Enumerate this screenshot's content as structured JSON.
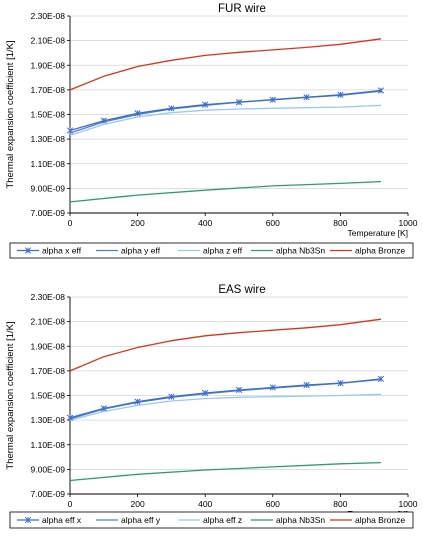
{
  "chart_data": [
    {
      "type": "line",
      "title": "FUR wire",
      "xlabel": "Temperature [K]",
      "ylabel": "Thermal expansion coefficient [1/K]",
      "xlim": [
        0,
        1000
      ],
      "ylim": [
        7e-09,
        2.3e-08
      ],
      "xticks": [
        0,
        200,
        400,
        600,
        800,
        1000
      ],
      "xtick_labels": [
        "0",
        "200",
        "400",
        "600",
        "800",
        "1000"
      ],
      "yticks": [
        7e-09,
        9e-09,
        1.1e-08,
        1.3e-08,
        1.5e-08,
        1.7e-08,
        1.9e-08,
        2.1e-08,
        2.3e-08
      ],
      "ytick_labels": [
        "7.00E-09",
        "9.00E-09",
        "1.10E-08",
        "1.30E-08",
        "1.50E-08",
        "1.70E-08",
        "1.90E-08",
        "2.10E-08",
        "2.30E-08"
      ],
      "grid": "horizontal",
      "legend_position": "bottom",
      "series": [
        {
          "name": "alpha x eff",
          "color": "#3d6fc9",
          "marker": "asterisk",
          "x": [
            0,
            100,
            200,
            300,
            400,
            500,
            600,
            700,
            800,
            920
          ],
          "y": [
            1.37e-08,
            1.45e-08,
            1.51e-08,
            1.55e-08,
            1.58e-08,
            1.6e-08,
            1.62e-08,
            1.64e-08,
            1.66e-08,
            1.695e-08
          ]
        },
        {
          "name": "alpha y eff",
          "color": "#4d7fd8",
          "marker": "none",
          "x": [
            0,
            100,
            200,
            300,
            400,
            500,
            600,
            700,
            800,
            920
          ],
          "y": [
            1.35e-08,
            1.44e-08,
            1.5e-08,
            1.545e-08,
            1.575e-08,
            1.6e-08,
            1.62e-08,
            1.64e-08,
            1.655e-08,
            1.69e-08
          ]
        },
        {
          "name": "alpha z eff",
          "color": "#9cc8ee",
          "marker": "none",
          "x": [
            0,
            100,
            200,
            300,
            400,
            500,
            600,
            700,
            800,
            920
          ],
          "y": [
            1.33e-08,
            1.42e-08,
            1.48e-08,
            1.515e-08,
            1.535e-08,
            1.545e-08,
            1.55e-08,
            1.555e-08,
            1.56e-08,
            1.575e-08
          ]
        },
        {
          "name": "alpha Nb3Sn",
          "color": "#2e9c6e",
          "marker": "none",
          "x": [
            0,
            200,
            400,
            600,
            800,
            920
          ],
          "y": [
            7.9e-09,
            8.45e-09,
            8.85e-09,
            9.2e-09,
            9.4e-09,
            9.55e-09
          ]
        },
        {
          "name": "alpha Bronze",
          "color": "#d8341e",
          "marker": "none",
          "x": [
            0,
            100,
            200,
            300,
            400,
            500,
            600,
            700,
            800,
            920
          ],
          "y": [
            1.7e-08,
            1.81e-08,
            1.89e-08,
            1.94e-08,
            1.98e-08,
            2.005e-08,
            2.025e-08,
            2.045e-08,
            2.07e-08,
            2.115e-08
          ]
        }
      ]
    },
    {
      "type": "line",
      "title": "EAS wire",
      "xlabel": "Temperature [K]",
      "ylabel": "Thermal expansion coefficient [1/K]",
      "xlim": [
        0,
        1000
      ],
      "ylim": [
        7e-09,
        2.3e-08
      ],
      "xticks": [
        0,
        200,
        400,
        600,
        800,
        1000
      ],
      "xtick_labels": [
        "0",
        "200",
        "400",
        "600",
        "800",
        "1000"
      ],
      "yticks": [
        7e-09,
        9e-09,
        1.1e-08,
        1.3e-08,
        1.5e-08,
        1.7e-08,
        1.9e-08,
        2.1e-08,
        2.3e-08
      ],
      "ytick_labels": [
        "7.00E-09",
        "9.00E-09",
        "1.10E-08",
        "1.30E-08",
        "1.50E-08",
        "1.70E-08",
        "1.90E-08",
        "2.10E-08",
        "2.30E-08"
      ],
      "grid": "horizontal",
      "legend_position": "bottom",
      "series": [
        {
          "name": "alpha eff x",
          "color": "#3d6fc9",
          "marker": "asterisk",
          "x": [
            0,
            100,
            200,
            300,
            400,
            500,
            600,
            700,
            800,
            920
          ],
          "y": [
            1.32e-08,
            1.395e-08,
            1.45e-08,
            1.49e-08,
            1.52e-08,
            1.545e-08,
            1.565e-08,
            1.585e-08,
            1.6e-08,
            1.635e-08
          ]
        },
        {
          "name": "alpha eff y",
          "color": "#4d7fd8",
          "marker": "none",
          "x": [
            0,
            100,
            200,
            300,
            400,
            500,
            600,
            700,
            800,
            920
          ],
          "y": [
            1.31e-08,
            1.39e-08,
            1.445e-08,
            1.485e-08,
            1.515e-08,
            1.54e-08,
            1.56e-08,
            1.58e-08,
            1.6e-08,
            1.63e-08
          ]
        },
        {
          "name": "alpha eff z",
          "color": "#9cc8ee",
          "marker": "none",
          "x": [
            0,
            100,
            200,
            300,
            400,
            500,
            600,
            700,
            800,
            920
          ],
          "y": [
            1.3e-08,
            1.37e-08,
            1.42e-08,
            1.455e-08,
            1.475e-08,
            1.485e-08,
            1.49e-08,
            1.495e-08,
            1.5e-08,
            1.51e-08
          ]
        },
        {
          "name": "alpha Nb3Sn",
          "color": "#2e9c6e",
          "marker": "none",
          "x": [
            0,
            200,
            400,
            600,
            800,
            920
          ],
          "y": [
            8.1e-09,
            8.6e-09,
            8.95e-09,
            9.2e-09,
            9.45e-09,
            9.55e-09
          ]
        },
        {
          "name": "alpha Bronze",
          "color": "#d8341e",
          "marker": "none",
          "x": [
            0,
            100,
            200,
            300,
            400,
            500,
            600,
            700,
            800,
            920
          ],
          "y": [
            1.7e-08,
            1.815e-08,
            1.89e-08,
            1.945e-08,
            1.985e-08,
            2.01e-08,
            2.03e-08,
            2.05e-08,
            2.075e-08,
            2.12e-08
          ]
        }
      ]
    }
  ]
}
